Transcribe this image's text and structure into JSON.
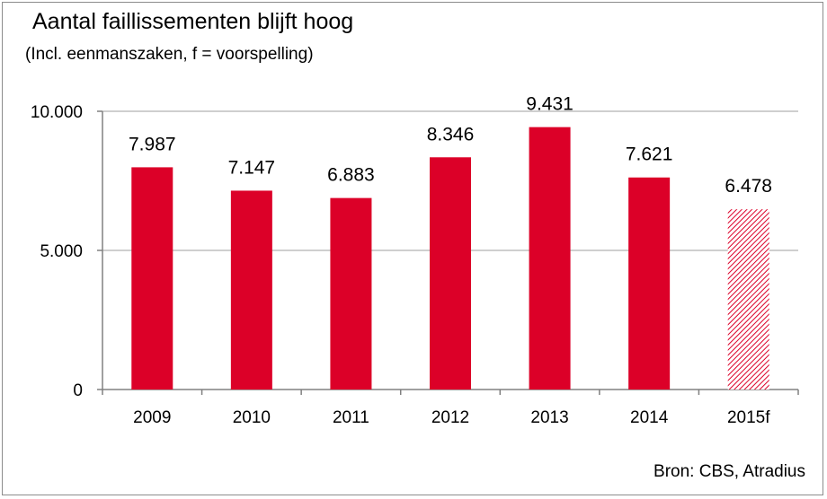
{
  "chart_data": {
    "type": "bar",
    "title": "Aantal faillissementen blijft hoog",
    "subtitle": "(Incl. eenmanszaken, f = voorspelling)",
    "source": "Bron: CBS, Atradius",
    "categories": [
      "2009",
      "2010",
      "2011",
      "2012",
      "2013",
      "2014",
      "2015f"
    ],
    "values": [
      7987,
      7147,
      6883,
      8346,
      9431,
      7621,
      6478
    ],
    "data_labels": [
      "7.987",
      "7.147",
      "6.883",
      "8.346",
      "9.431",
      "7.621",
      "6.478"
    ],
    "forecast": [
      false,
      false,
      false,
      false,
      false,
      false,
      true
    ],
    "ylim": [
      0,
      10000
    ],
    "yticks": [
      0,
      5000,
      10000
    ],
    "ytick_labels": [
      "0",
      "5.000",
      "10.000"
    ],
    "grid": true,
    "legend": "none",
    "colors": {
      "bar": "#dc0028",
      "forecast_hatch": "#dc0028",
      "grid": "#bfbfbf",
      "axis": "#808080"
    }
  }
}
